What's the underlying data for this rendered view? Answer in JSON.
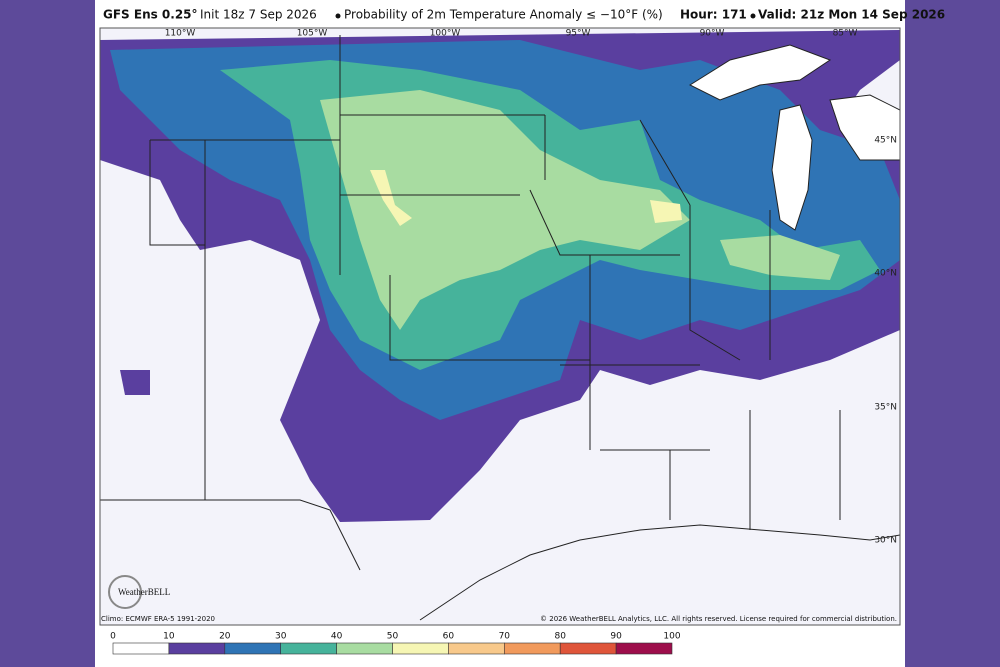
{
  "header": {
    "model": "GFS Ens 0.25°",
    "init": "Init 18z 7 Sep 2026",
    "title": "Probability of 2m Temperature Anomaly ≤ −10°F (%)",
    "hour": "Hour: 171",
    "valid": "Valid: 21z Mon 14 Sep 2026"
  },
  "map": {
    "longitudes": [
      "110°W",
      "105°W",
      "100°W",
      "95°W",
      "90°W",
      "85°W"
    ],
    "latitudes": [
      "45°N",
      "40°N",
      "35°N",
      "30°N"
    ],
    "logo": "WeatherBELL"
  },
  "footer": {
    "climo": "Climo: ECMWF ERA-5 1991-2020",
    "copyright": "© 2026 WeatherBELL Analytics, LLC. All rights reserved. License required for commercial distribution."
  },
  "colorbar": {
    "ticks": [
      0,
      10,
      20,
      30,
      40,
      50,
      60,
      70,
      80,
      90,
      100
    ],
    "colors": [
      "#ffffff",
      "#5a3f9f",
      "#2f74b5",
      "#46b39b",
      "#a8dca1",
      "#f6f6b4",
      "#f8c98b",
      "#f19a5c",
      "#df553a",
      "#9d0e4b"
    ]
  }
}
